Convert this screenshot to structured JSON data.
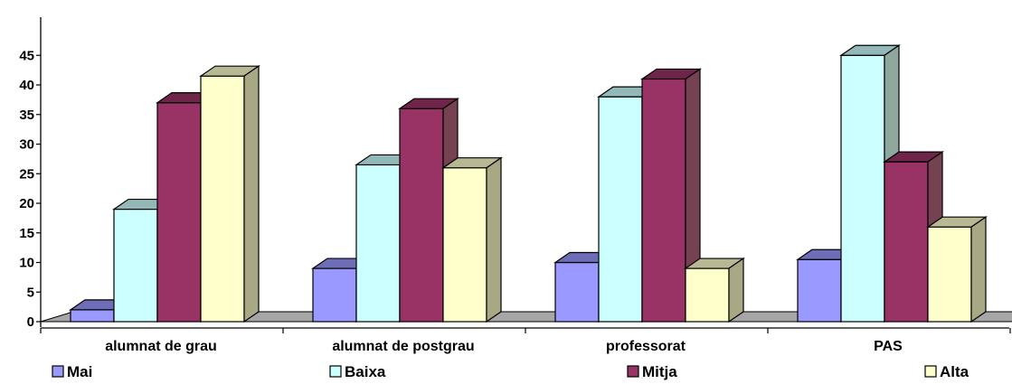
{
  "chart_data": {
    "type": "bar",
    "categories": [
      "alumnat de grau",
      "alumnat de postgrau",
      "professorat",
      "PAS"
    ],
    "series": [
      {
        "name": "Mai",
        "color": "#9999FF",
        "values": [
          2,
          9,
          10,
          10.5
        ]
      },
      {
        "name": "Baixa",
        "color": "#CCFFFF",
        "values": [
          19,
          26.5,
          38,
          45
        ]
      },
      {
        "name": "Mitja",
        "color": "#993366",
        "values": [
          37,
          36,
          41,
          27
        ]
      },
      {
        "name": "Alta",
        "color": "#FFFFCC",
        "values": [
          41.5,
          26,
          9,
          16
        ]
      }
    ],
    "yticks": [
      "0",
      "5",
      "10",
      "15",
      "20",
      "25",
      "30",
      "35",
      "40",
      "45"
    ],
    "ylim": [
      0,
      45
    ],
    "grid": false,
    "legend_position": "bottom",
    "style": "3d-clustered-columns"
  }
}
